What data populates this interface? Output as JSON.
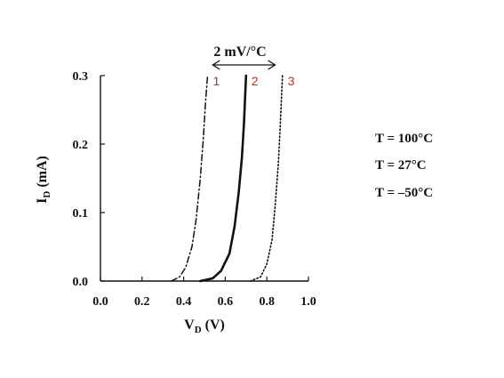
{
  "chart_data": {
    "type": "line",
    "xlabel": {
      "main": "V",
      "sub": "D",
      "unit": " (V)"
    },
    "ylabel": {
      "main": "I",
      "sub": "D",
      "unit": " (mA)"
    },
    "xlim": [
      0.0,
      1.0
    ],
    "ylim": [
      0.0,
      0.3
    ],
    "xticks": [
      "0.0",
      "0.2",
      "0.4",
      "0.6",
      "0.8",
      "1.0"
    ],
    "yticks": [
      "0.0",
      "0.1",
      "0.2",
      "0.3"
    ],
    "series": [
      {
        "name": "1",
        "temperature": "T = 100°C",
        "style": "dashdot",
        "color": "#111111",
        "points": [
          [
            0.34,
            0.0
          ],
          [
            0.38,
            0.006
          ],
          [
            0.41,
            0.02
          ],
          [
            0.44,
            0.05
          ],
          [
            0.46,
            0.09
          ],
          [
            0.48,
            0.15
          ],
          [
            0.495,
            0.21
          ],
          [
            0.505,
            0.26
          ],
          [
            0.515,
            0.3
          ]
        ]
      },
      {
        "name": "2",
        "temperature": "T = 27°C",
        "style": "solid",
        "color": "#111111",
        "points": [
          [
            0.48,
            0.0
          ],
          [
            0.54,
            0.004
          ],
          [
            0.58,
            0.015
          ],
          [
            0.62,
            0.04
          ],
          [
            0.645,
            0.08
          ],
          [
            0.665,
            0.13
          ],
          [
            0.68,
            0.18
          ],
          [
            0.69,
            0.23
          ],
          [
            0.7,
            0.3
          ]
        ]
      },
      {
        "name": "3",
        "temperature": "T = –50°C",
        "style": "dotted",
        "color": "#111111",
        "points": [
          [
            0.72,
            0.0
          ],
          [
            0.77,
            0.006
          ],
          [
            0.8,
            0.025
          ],
          [
            0.825,
            0.06
          ],
          [
            0.84,
            0.11
          ],
          [
            0.855,
            0.17
          ],
          [
            0.865,
            0.23
          ],
          [
            0.875,
            0.3
          ]
        ]
      }
    ],
    "annotation": {
      "text": "2 mV/°C",
      "from": 0.54,
      "to": 0.84
    }
  }
}
